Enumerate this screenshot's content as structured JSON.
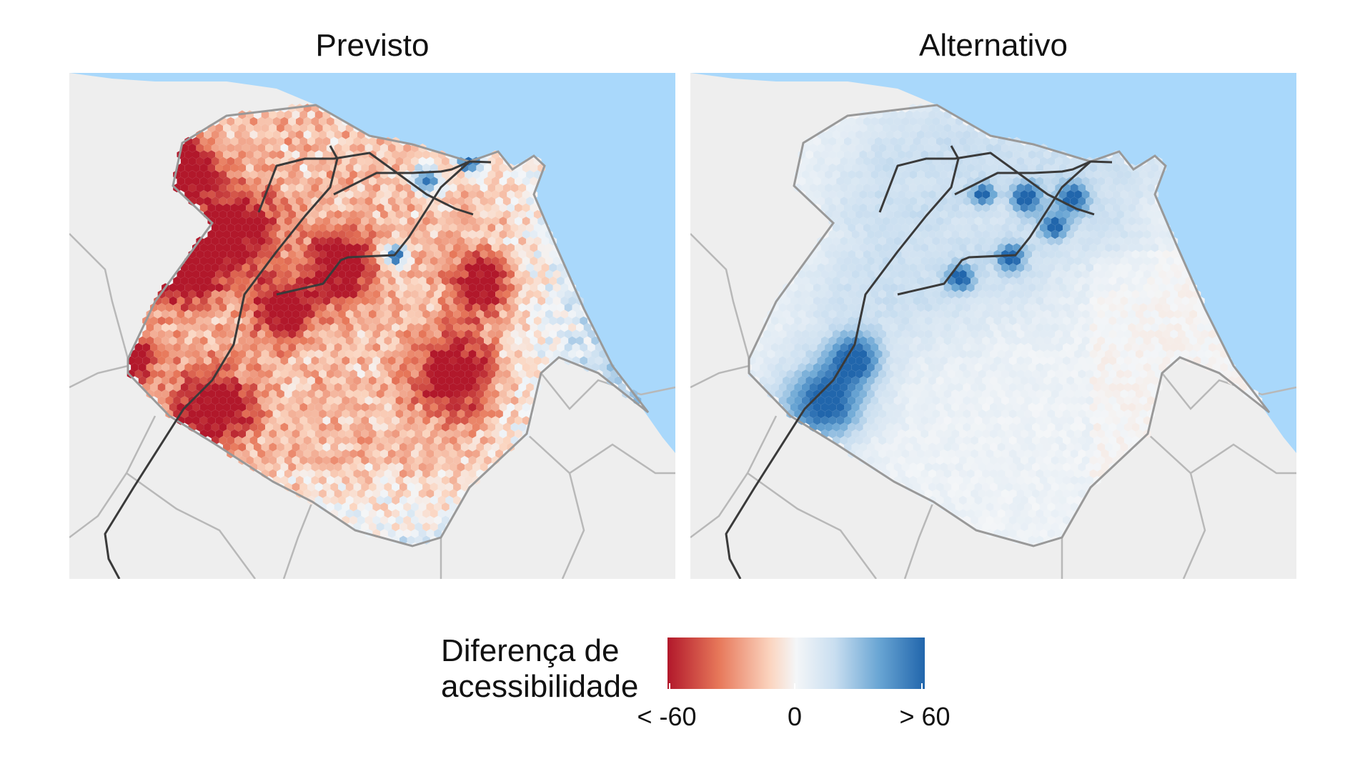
{
  "panels": [
    {
      "title": "Previsto",
      "variant": "previsto"
    },
    {
      "title": "Alternativo",
      "variant": "alternativo"
    }
  ],
  "legend": {
    "title_line1": "Diferença de",
    "title_line2": "acessibilidade",
    "tick_min": "< -60",
    "tick_mid": "0",
    "tick_max": "> 60",
    "range": [
      -60,
      60
    ],
    "colors": [
      "#b2182b",
      "#e7785a",
      "#fbd5c0",
      "#f4f6f8",
      "#c9def0",
      "#6aa6d4",
      "#2166ac"
    ]
  },
  "colors": {
    "sea": "#a9d8fb",
    "land": "#eeeeee",
    "municipality_border": "#b8b8b8",
    "city_border": "#999999",
    "rail_lines": "#3a3a3a"
  }
}
